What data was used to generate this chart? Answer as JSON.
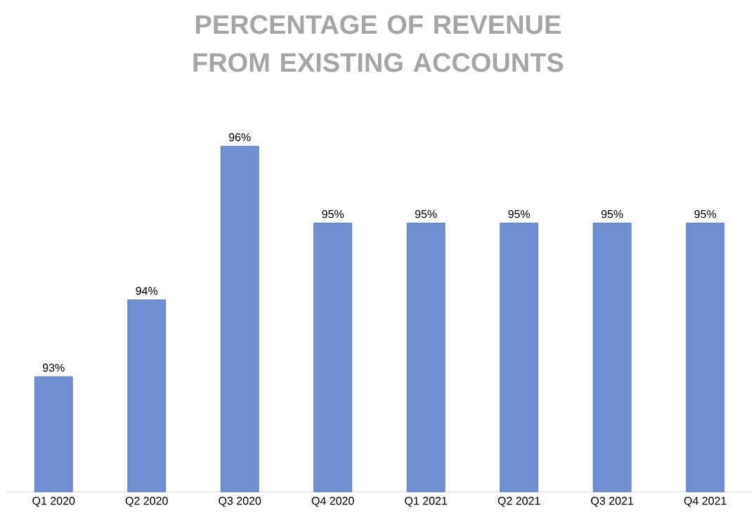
{
  "chart_data": {
    "type": "bar",
    "title": "PERCENTAGE OF REVENUE FROM EXISTING ACCOUNTS",
    "categories": [
      "Q1 2020",
      "Q2 2020",
      "Q3 2020",
      "Q4 2020",
      "Q1 2021",
      "Q2 2021",
      "Q3 2021",
      "Q4 2021"
    ],
    "values": [
      93,
      94,
      96,
      95,
      95,
      95,
      95,
      95
    ],
    "value_labels": [
      "93%",
      "94%",
      "96%",
      "95%",
      "95%",
      "95%",
      "95%",
      "95%"
    ],
    "color": "#6f8fd2",
    "ylim": [
      91.5,
      96
    ]
  }
}
